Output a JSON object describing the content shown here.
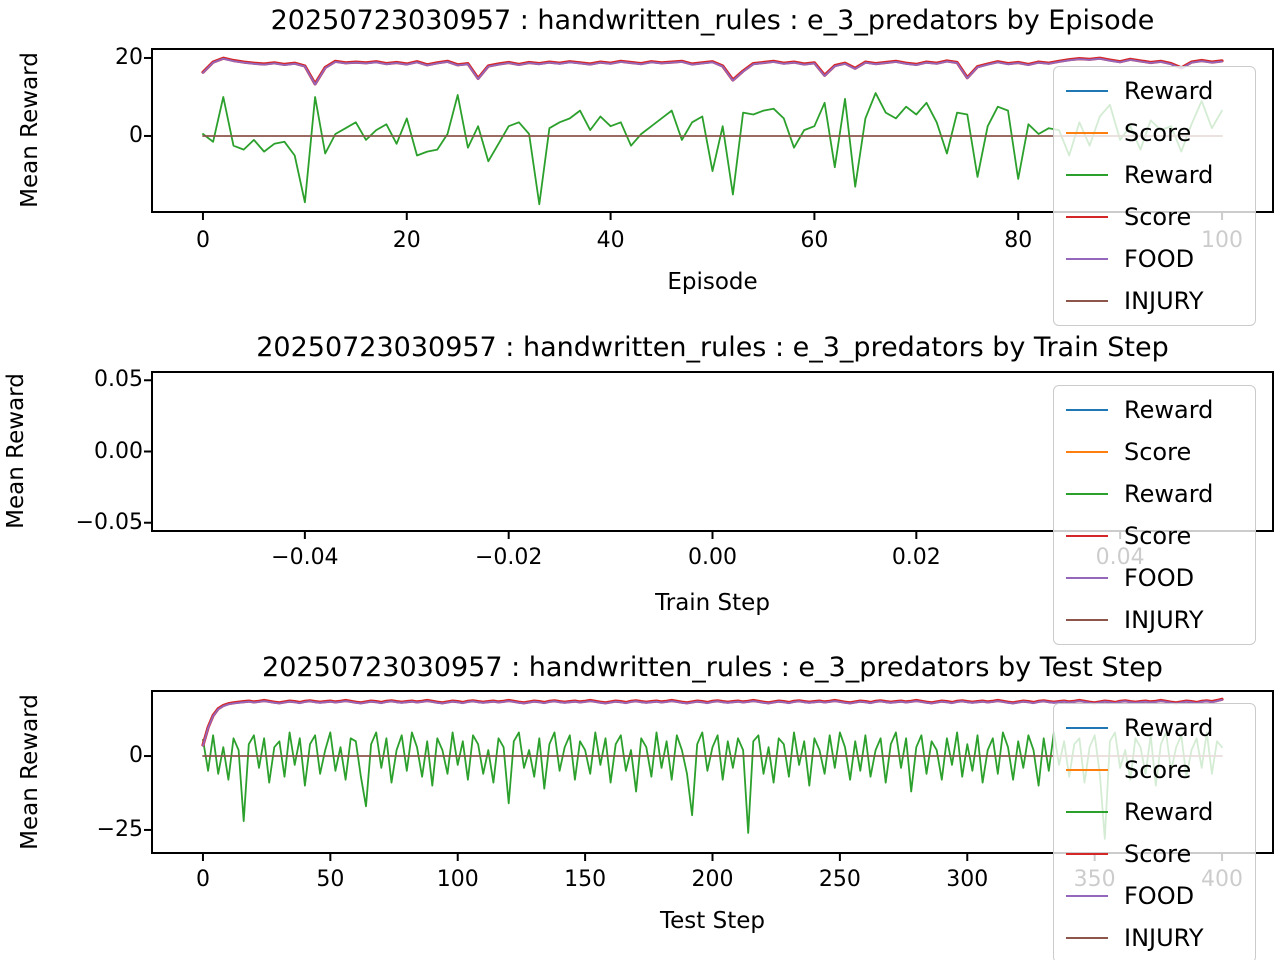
{
  "figure": {
    "background": "#ffffff"
  },
  "chart_data": [
    {
      "type": "line",
      "title": "20250723030957 : handwritten_rules : e_3_predators by Episode",
      "xlabel": "Episode",
      "ylabel": "Mean Reward",
      "xlim": [
        -5,
        105
      ],
      "ylim": [
        -19.5,
        22.3
      ],
      "grid": false,
      "legend_position": "upper right",
      "xticks": [
        {
          "v": 0,
          "label": "0"
        },
        {
          "v": 20,
          "label": "20"
        },
        {
          "v": 40,
          "label": "40"
        },
        {
          "v": 60,
          "label": "60"
        },
        {
          "v": 80,
          "label": "80"
        },
        {
          "v": 100,
          "label": "100"
        }
      ],
      "yticks": [
        {
          "v": 20,
          "label": "20"
        },
        {
          "v": 0,
          "label": "0"
        }
      ],
      "legend": [
        {
          "label": "Reward",
          "color": "#1f77b4"
        },
        {
          "label": "Score",
          "color": "#ff7f0e"
        },
        {
          "label": "Reward",
          "color": "#2ca02c"
        },
        {
          "label": "Score",
          "color": "#d62728"
        },
        {
          "label": "FOOD",
          "color": "#9467bd"
        },
        {
          "label": "INJURY",
          "color": "#8c564b"
        }
      ],
      "series": [
        {
          "name": "Reward",
          "color": "#2ca02c",
          "lw": 1.8,
          "x_start": 0,
          "x_step": 1,
          "values": [
            0.5,
            -1.5,
            10.0,
            -2.5,
            -3.5,
            -1.0,
            -4.0,
            -2.0,
            -1.5,
            -5.0,
            -17.0,
            10.0,
            -4.5,
            0.5,
            2.0,
            3.5,
            -1.0,
            1.5,
            3.0,
            -2.0,
            4.5,
            -5.0,
            -4.0,
            -3.5,
            0.5,
            10.5,
            -3.0,
            2.5,
            -6.5,
            -2.0,
            2.5,
            3.5,
            0.5,
            -17.5,
            2.0,
            3.5,
            4.5,
            6.5,
            1.5,
            5.0,
            2.5,
            3.5,
            -2.5,
            0.5,
            2.5,
            4.5,
            6.5,
            -1.0,
            3.5,
            5.0,
            -9.0,
            2.5,
            -15.0,
            6.0,
            5.5,
            6.5,
            7.0,
            4.5,
            -3.0,
            1.5,
            2.5,
            8.5,
            -8.0,
            9.5,
            -13.0,
            4.5,
            11.0,
            6.0,
            4.5,
            7.5,
            5.5,
            8.5,
            3.5,
            -4.5,
            6.0,
            5.5,
            -10.5,
            2.5,
            7.5,
            6.5,
            -11.0,
            3.0,
            0.5,
            2.0,
            1.5,
            -5.0,
            3.5,
            -2.5,
            5.0,
            8.0,
            -1.0,
            2.5,
            -3.5,
            4.0,
            1.5,
            2.5,
            -4.0,
            3.0,
            9.0,
            2.0,
            6.5
          ]
        },
        {
          "name": "Score",
          "color": "#d62728",
          "lw": 3.2,
          "x_start": 0,
          "x_step": 1,
          "copy": "FOOD",
          "offset": 0.15
        },
        {
          "name": "FOOD",
          "color": "#9467bd",
          "lw": 1.8,
          "x_start": 0,
          "x_step": 1,
          "values": [
            16.2,
            18.8,
            19.8,
            19.2,
            18.8,
            18.5,
            18.3,
            18.6,
            18.2,
            18.5,
            17.8,
            13.2,
            17.4,
            19.0,
            18.6,
            18.8,
            18.6,
            18.9,
            18.4,
            18.7,
            18.3,
            18.9,
            18.1,
            18.6,
            19.0,
            18.1,
            18.4,
            14.6,
            17.8,
            18.3,
            18.7,
            18.2,
            18.7,
            18.4,
            18.8,
            18.5,
            18.9,
            18.6,
            18.3,
            18.8,
            18.5,
            19.0,
            18.7,
            18.4,
            18.9,
            18.6,
            18.8,
            19.0,
            18.3,
            18.6,
            18.9,
            17.8,
            14.2,
            16.5,
            18.4,
            18.7,
            19.0,
            18.5,
            18.8,
            18.3,
            18.6,
            15.4,
            17.9,
            18.5,
            17.2,
            18.8,
            18.4,
            18.7,
            19.0,
            18.5,
            18.2,
            18.8,
            18.5,
            19.1,
            18.7,
            14.8,
            17.6,
            18.3,
            18.9,
            18.4,
            18.7,
            18.2,
            18.8,
            18.5,
            19.0,
            19.4,
            19.7,
            19.5,
            19.8,
            19.3,
            18.9,
            19.5,
            19.1,
            18.7,
            19.0,
            18.4,
            17.3,
            18.8,
            19.2,
            18.8,
            19.1
          ]
        },
        {
          "name": "INJURY",
          "color": "#8c564b",
          "lw": 1.8,
          "x_start": 0,
          "x_step": 1,
          "constant": 0,
          "n": 101
        }
      ]
    },
    {
      "type": "line",
      "title": "20250723030957 : handwritten_rules : e_3_predators by Train Step",
      "xlabel": "Train Step",
      "ylabel": "Mean Reward",
      "xlim": [
        -0.055,
        0.055
      ],
      "ylim": [
        -0.0558,
        0.0558
      ],
      "grid": false,
      "legend_position": "upper right",
      "xticks": [
        {
          "v": -0.04,
          "label": "−0.04"
        },
        {
          "v": -0.02,
          "label": "−0.02"
        },
        {
          "v": 0.0,
          "label": "0.00"
        },
        {
          "v": 0.02,
          "label": "0.02"
        },
        {
          "v": 0.04,
          "label": "0.04"
        }
      ],
      "yticks": [
        {
          "v": 0.05,
          "label": "0.05"
        },
        {
          "v": 0.0,
          "label": "0.00"
        },
        {
          "v": -0.05,
          "label": "−0.05"
        }
      ],
      "legend": [
        {
          "label": "Reward",
          "color": "#1f77b4"
        },
        {
          "label": "Score",
          "color": "#ff7f0e"
        },
        {
          "label": "Reward",
          "color": "#2ca02c"
        },
        {
          "label": "Score",
          "color": "#d62728"
        },
        {
          "label": "FOOD",
          "color": "#9467bd"
        },
        {
          "label": "INJURY",
          "color": "#8c564b"
        }
      ],
      "series": []
    },
    {
      "type": "line",
      "title": "20250723030957 : handwritten_rules : e_3_predators by Test Step",
      "xlabel": "Test Step",
      "ylabel": "Mean Reward",
      "xlim": [
        -20,
        420
      ],
      "ylim": [
        -32.8,
        22.0
      ],
      "grid": false,
      "legend_position": "upper right",
      "xticks": [
        {
          "v": 0,
          "label": "0"
        },
        {
          "v": 50,
          "label": "50"
        },
        {
          "v": 100,
          "label": "100"
        },
        {
          "v": 150,
          "label": "150"
        },
        {
          "v": 200,
          "label": "200"
        },
        {
          "v": 250,
          "label": "250"
        },
        {
          "v": 300,
          "label": "300"
        },
        {
          "v": 350,
          "label": "350"
        },
        {
          "v": 400,
          "label": "400"
        }
      ],
      "yticks": [
        {
          "v": 0,
          "label": "0"
        },
        {
          "v": -25,
          "label": "−25"
        }
      ],
      "legend": [
        {
          "label": "Reward",
          "color": "#1f77b4"
        },
        {
          "label": "Score",
          "color": "#ff7f0e"
        },
        {
          "label": "Reward",
          "color": "#2ca02c"
        },
        {
          "label": "Score",
          "color": "#d62728"
        },
        {
          "label": "FOOD",
          "color": "#9467bd"
        },
        {
          "label": "INJURY",
          "color": "#8c564b"
        }
      ],
      "series": [
        {
          "name": "Reward",
          "color": "#2ca02c",
          "lw": 1.8,
          "x_start": 0,
          "x_step": 2,
          "values": [
            5.5,
            -5,
            7,
            -6,
            3,
            -8,
            6,
            2,
            -22,
            4,
            7,
            -4,
            6,
            -9,
            3,
            5,
            -7,
            8,
            -3,
            6,
            -10,
            4,
            7,
            -6,
            2,
            8,
            -5,
            3,
            -8,
            6,
            5,
            -7,
            -17,
            4,
            8,
            -4,
            6,
            -9,
            2,
            7,
            -5,
            8,
            3,
            -7,
            5,
            -10,
            6,
            2,
            -6,
            8,
            -3,
            5,
            -8,
            7,
            4,
            -6,
            2,
            -9,
            6,
            3,
            -16,
            5,
            8,
            -4,
            2,
            -7,
            6,
            -11,
            4,
            8,
            -5,
            3,
            7,
            -8,
            5,
            2,
            -6,
            8,
            -3,
            6,
            -9,
            4,
            7,
            -5,
            2,
            -12,
            6,
            3,
            -7,
            8,
            -4,
            5,
            -8,
            7,
            2,
            -6,
            -20,
            4,
            8,
            -5,
            3,
            7,
            -8,
            5,
            -4,
            6,
            2,
            -26,
            5,
            7,
            -6,
            3,
            -9,
            6,
            4,
            -7,
            8,
            -3,
            5,
            -10,
            6,
            2,
            -6,
            7,
            -4,
            8,
            3,
            -8,
            5,
            -5,
            7,
            -7,
            2,
            6,
            -9,
            4,
            8,
            -4,
            6,
            -12,
            3,
            7,
            -6,
            5,
            2,
            -8,
            6,
            -3,
            8,
            -7,
            4,
            -5,
            7,
            -9,
            2,
            6,
            -6,
            8,
            3,
            -8,
            5,
            -4,
            7,
            2,
            -10,
            6,
            -5,
            8,
            -3,
            5,
            -7,
            4,
            6,
            -9,
            3,
            7,
            -6,
            -28,
            5,
            8,
            -4,
            2,
            -8,
            6,
            3,
            -6,
            7,
            -10,
            4,
            8,
            -5,
            3,
            7,
            -7,
            2,
            6,
            -4,
            8,
            -6,
            5,
            3
          ]
        },
        {
          "name": "Score",
          "color": "#d62728",
          "lw": 3.2,
          "x_start": 0,
          "x_step": 2,
          "copy": "FOOD",
          "offset": 0.2
        },
        {
          "name": "FOOD",
          "color": "#9467bd",
          "lw": 1.8,
          "x_start": 0,
          "x_step": 2,
          "values": [
            3.5,
            9.5,
            13.5,
            15.8,
            16.9,
            17.5,
            17.8,
            18.0,
            18.2,
            18.4,
            18.1,
            18.3,
            18.6,
            18.3,
            18.0,
            17.8,
            18.1,
            18.4,
            18.2,
            17.9,
            18.3,
            18.5,
            18.2,
            18.0,
            18.2,
            18.4,
            18.1,
            18.3,
            18.6,
            18.3,
            18.0,
            17.8,
            18.1,
            18.4,
            18.2,
            17.9,
            18.3,
            18.5,
            18.2,
            18.0,
            18.2,
            18.4,
            18.1,
            18.3,
            18.6,
            18.3,
            18.0,
            17.8,
            18.1,
            18.4,
            18.2,
            17.9,
            18.3,
            18.5,
            18.2,
            18.0,
            18.2,
            18.4,
            18.1,
            18.3,
            18.6,
            18.3,
            18.0,
            17.8,
            18.1,
            18.4,
            18.2,
            17.9,
            18.3,
            18.5,
            18.2,
            18.0,
            18.2,
            18.4,
            18.1,
            18.3,
            18.6,
            18.3,
            18.0,
            17.8,
            18.1,
            18.4,
            18.2,
            17.9,
            18.3,
            18.5,
            18.2,
            18.0,
            18.2,
            18.4,
            18.1,
            18.3,
            18.6,
            18.3,
            18.0,
            17.8,
            18.1,
            18.4,
            18.2,
            17.9,
            18.3,
            18.5,
            18.2,
            18.0,
            18.2,
            18.4,
            18.1,
            18.3,
            18.6,
            18.3,
            18.0,
            17.8,
            18.1,
            18.4,
            18.2,
            17.9,
            18.3,
            18.5,
            18.2,
            18.0,
            18.2,
            18.4,
            18.1,
            18.3,
            18.6,
            18.3,
            18.0,
            17.8,
            18.1,
            18.4,
            18.2,
            17.9,
            18.3,
            18.5,
            18.2,
            18.0,
            18.2,
            18.4,
            18.1,
            18.3,
            18.6,
            18.3,
            18.0,
            17.8,
            18.1,
            18.4,
            18.2,
            17.9,
            18.3,
            18.5,
            18.2,
            18.0,
            18.2,
            18.4,
            18.1,
            18.3,
            18.6,
            18.3,
            18.0,
            17.8,
            18.1,
            18.4,
            18.2,
            17.9,
            18.3,
            18.5,
            18.2,
            18.0,
            18.2,
            18.4,
            18.1,
            18.3,
            18.6,
            18.3,
            18.0,
            17.8,
            18.1,
            18.4,
            18.2,
            17.9,
            18.3,
            18.5,
            18.2,
            18.0,
            18.2,
            18.4,
            18.1,
            18.3,
            18.6,
            18.3,
            18.0,
            17.8,
            18.1,
            18.4,
            18.2,
            17.9,
            18.3,
            18.5,
            18.2,
            18.6,
            19.0
          ]
        },
        {
          "name": "INJURY",
          "color": "#8c564b",
          "lw": 1.8,
          "x_start": 0,
          "x_step": 2,
          "constant": 0,
          "n": 201
        }
      ]
    }
  ]
}
